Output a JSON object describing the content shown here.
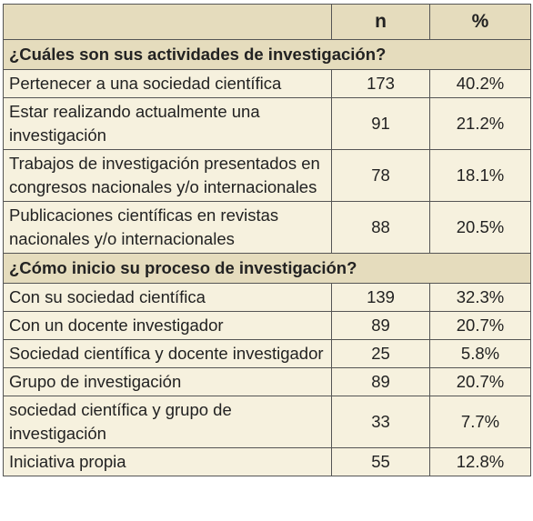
{
  "header": {
    "n": "n",
    "pct": "%"
  },
  "sections": [
    {
      "title": "¿Cuáles son sus actividades de investigación?",
      "rows": [
        {
          "label": "Pertenecer a una sociedad científica",
          "n": 173,
          "pct": "40.2%"
        },
        {
          "label": "Estar realizando actualmente una investigación",
          "n": 91,
          "pct": "21.2%"
        },
        {
          "label": "Trabajos de investigación presentados en congresos nacionales y/o internacionales",
          "n": 78,
          "pct": "18.1%"
        },
        {
          "label": "Publicaciones científicas en revistas nacionales y/o internacionales",
          "n": 88,
          "pct": "20.5%"
        }
      ]
    },
    {
      "title": "¿Cómo inicio su proceso de investigación?",
      "rows": [
        {
          "label": "Con su sociedad científica",
          "n": 139,
          "pct": "32.3%"
        },
        {
          "label": "Con un docente investigador",
          "n": 89,
          "pct": "20.7%"
        },
        {
          "label": "Sociedad científica y docente investigador",
          "n": 25,
          "pct": "5.8%"
        },
        {
          "label": "Grupo de investigación",
          "n": 89,
          "pct": "20.7%"
        },
        {
          "label": "sociedad científica y grupo de investigación",
          "n": 33,
          "pct": "7.7%"
        },
        {
          "label": "Iniciativa propia",
          "n": 55,
          "pct": "12.8%"
        }
      ]
    }
  ]
}
